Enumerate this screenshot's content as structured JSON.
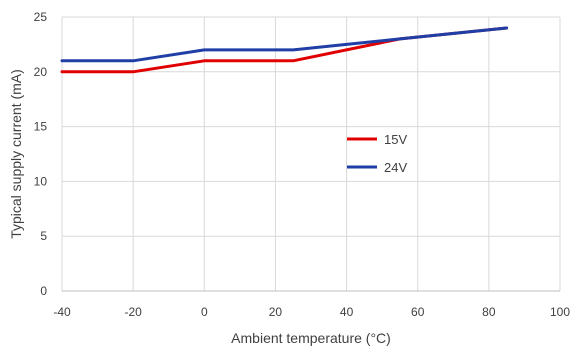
{
  "chart_data": {
    "type": "line",
    "title": "",
    "xlabel": "Ambient temperature (°C)",
    "ylabel": "Typical supply current (mA)",
    "xlim": [
      -40,
      100
    ],
    "ylim": [
      0,
      25
    ],
    "xticks": [
      "-40",
      "-20",
      "0",
      "20",
      "40",
      "60",
      "80",
      "100"
    ],
    "yticks": [
      "0",
      "5",
      "10",
      "15",
      "20",
      "25"
    ],
    "grid": true,
    "legend_position": "center-right",
    "series": [
      {
        "name": "15V",
        "color": "#e00000",
        "x": [
          -40,
          -20,
          0,
          25,
          55,
          85
        ],
        "y": [
          20,
          20,
          21,
          21,
          23,
          24
        ]
      },
      {
        "name": "24V",
        "color": "#1f3fa6",
        "x": [
          -40,
          -20,
          0,
          25,
          40,
          55,
          85
        ],
        "y": [
          21,
          21,
          22,
          22,
          22.5,
          23,
          24
        ]
      }
    ]
  }
}
